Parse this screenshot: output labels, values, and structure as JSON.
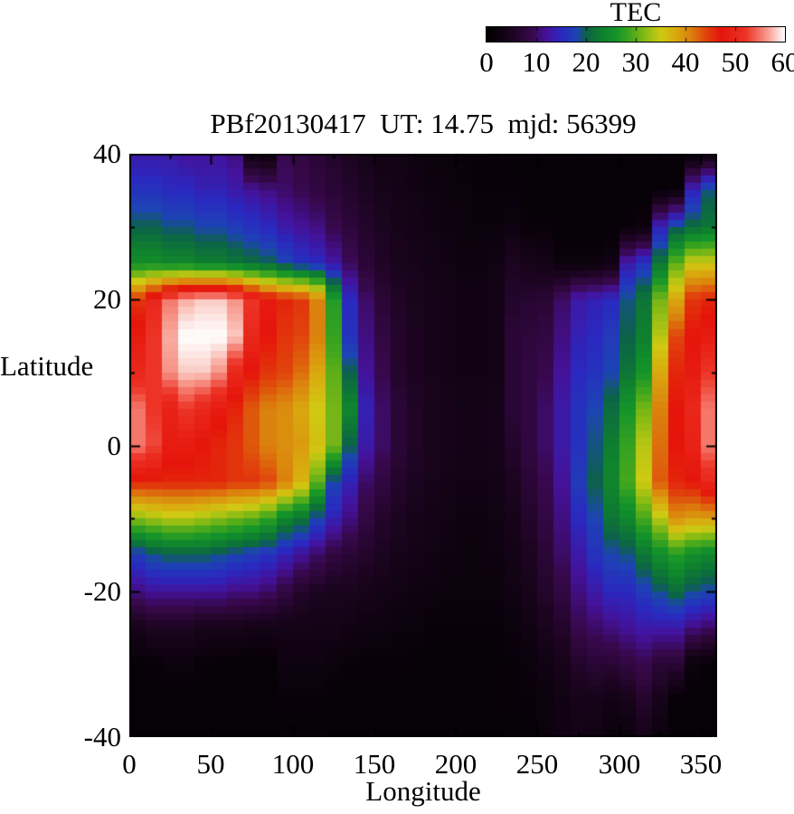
{
  "colorbar": {
    "title": "TEC",
    "tick_labels": [
      "0",
      "10",
      "20",
      "30",
      "40",
      "50",
      "60"
    ]
  },
  "plot": {
    "title": "PBf20130417  UT: 14.75  mjd: 56399",
    "x_label": "Longitude",
    "y_label": "Latitude",
    "x_tick_labels": [
      "0",
      "50",
      "100",
      "150",
      "200",
      "250",
      "300",
      "350"
    ],
    "y_tick_labels": [
      "40",
      "20",
      "0",
      "-20",
      "-40"
    ]
  },
  "chart_data": {
    "type": "heatmap",
    "title": "PBf20130417  UT: 14.75  mjd: 56399",
    "xlabel": "Longitude",
    "ylabel": "Latitude",
    "zlabel": "TEC",
    "xlim": [
      0,
      360
    ],
    "ylim": [
      -40,
      40
    ],
    "zlim": [
      0,
      60
    ],
    "grid": false,
    "legend_position": "top-right-colorbar",
    "x_major_ticks": [
      0,
      50,
      100,
      150,
      200,
      250,
      300,
      350
    ],
    "x_minor_ticks": [
      25,
      75,
      125,
      175,
      225,
      275,
      325
    ],
    "y_major_ticks": [
      40,
      20,
      0,
      -20,
      -40
    ],
    "y_minor_ticks": [
      30,
      10,
      -10,
      -30
    ],
    "colorbar_ticks": [
      0,
      10,
      20,
      30,
      40,
      50,
      60
    ],
    "lon_bins": [
      0,
      10,
      20,
      30,
      40,
      50,
      60,
      70,
      80,
      90,
      100,
      110,
      120,
      130,
      140,
      150,
      160,
      170,
      180,
      190,
      200,
      210,
      220,
      230,
      240,
      250,
      260,
      270,
      280,
      290,
      300,
      310,
      320,
      330,
      340,
      350
    ],
    "lat_samples": [
      40,
      35,
      30,
      25,
      20,
      15,
      10,
      5,
      0,
      -5,
      -10,
      -15,
      -20,
      -25,
      -30,
      -35,
      -40
    ],
    "values": [
      [
        13,
        13,
        13,
        12,
        12,
        12,
        11,
        3,
        2,
        9,
        8,
        7,
        6,
        5,
        4,
        3,
        3,
        2.5,
        2,
        2,
        1.5,
        1.5,
        1.5,
        1,
        1,
        1,
        1,
        1,
        1,
        1,
        1,
        1,
        1,
        1,
        1,
        2
      ],
      [
        16,
        16,
        15,
        15,
        14,
        14,
        13,
        12,
        11,
        10,
        9,
        8,
        7,
        6,
        5,
        4,
        3.5,
        3,
        2.5,
        2,
        2,
        1.5,
        1.5,
        1.5,
        1,
        1,
        1,
        1,
        1,
        1,
        1,
        1,
        1,
        1.5,
        14,
        19
      ],
      [
        20,
        20,
        19,
        19,
        18,
        18,
        17,
        16,
        15,
        13,
        12,
        11,
        9,
        7.5,
        6,
        5,
        4,
        3.5,
        3,
        2.5,
        2,
        2,
        2,
        2.5,
        1.5,
        1.5,
        1,
        1,
        1,
        1,
        1.5,
        2,
        14,
        19,
        21,
        22
      ],
      [
        25,
        25,
        24,
        24,
        23,
        23,
        22,
        21,
        20,
        18,
        16,
        15,
        12.5,
        9.5,
        7,
        5.5,
        4.5,
        4,
        3.5,
        3,
        2.5,
        2.5,
        3,
        5,
        4,
        3.5,
        2,
        2,
        2,
        3,
        13,
        16,
        22,
        30,
        35,
        35
      ],
      [
        45,
        50,
        55,
        57,
        58,
        58,
        56,
        52,
        48,
        46,
        45,
        41,
        27,
        15,
        10,
        7,
        5.5,
        4.5,
        4,
        3.5,
        3,
        3,
        3.5,
        6,
        6.5,
        7,
        10,
        13,
        14,
        15,
        19,
        22,
        31,
        38,
        45,
        46
      ],
      [
        48,
        52,
        57,
        60,
        60,
        60,
        58,
        50,
        47,
        45,
        44,
        41,
        28,
        16,
        11,
        8,
        6,
        5,
        4,
        3.5,
        3,
        3,
        3.5,
        7,
        7.5,
        8,
        11,
        14,
        15,
        17,
        20,
        23,
        34,
        44,
        47,
        48
      ],
      [
        50,
        52,
        56,
        58,
        58,
        56,
        50,
        47,
        45,
        44,
        42,
        38,
        30,
        20,
        12,
        9,
        6,
        5,
        4,
        3.5,
        3,
        3,
        3.5,
        7,
        8,
        9,
        12,
        15,
        16,
        18,
        22,
        26,
        38,
        46,
        48,
        52
      ],
      [
        55,
        52,
        49,
        52,
        50,
        48,
        46,
        43,
        41,
        40,
        38,
        35,
        31,
        24,
        14,
        10,
        7,
        5.5,
        4.5,
        4,
        3.5,
        3.5,
        4,
        7,
        8,
        10,
        13,
        16,
        18,
        21,
        26,
        31,
        41,
        47,
        50,
        55
      ],
      [
        55,
        53,
        48,
        48,
        47,
        46,
        45,
        43,
        41,
        40,
        39,
        36,
        31,
        20,
        13,
        10,
        7,
        5.5,
        4.5,
        4,
        3.5,
        3.5,
        4,
        6,
        8,
        10,
        13,
        16,
        19,
        23,
        28,
        34,
        42,
        47,
        49,
        55
      ],
      [
        46,
        46,
        46,
        46,
        46,
        46,
        45,
        45,
        44,
        41,
        37,
        30,
        18,
        14,
        10,
        8,
        6,
        5,
        4,
        3.5,
        3,
        3,
        3.5,
        5,
        7,
        9,
        12,
        17,
        20,
        24,
        29,
        35,
        43,
        46,
        47,
        50
      ],
      [
        32,
        33,
        34,
        34,
        33,
        32,
        31,
        30,
        28,
        24,
        22,
        18,
        14,
        11,
        8,
        6,
        5,
        4,
        3.5,
        3,
        2.5,
        2.5,
        3,
        4,
        6,
        8,
        11,
        15,
        18,
        22,
        24,
        29,
        34,
        40,
        39,
        39
      ],
      [
        17,
        19,
        20,
        20,
        20,
        19,
        18,
        17,
        16,
        14,
        12,
        10,
        8,
        7,
        6,
        5,
        4,
        3.5,
        3,
        2.5,
        2,
        2,
        2.5,
        3.5,
        5,
        7,
        10,
        13,
        16,
        18,
        19,
        22,
        25,
        27,
        25,
        24
      ],
      [
        11,
        12,
        12,
        12,
        12,
        12,
        11,
        11,
        10,
        8,
        6,
        5,
        4.5,
        4.5,
        4,
        3.5,
        3,
        2.5,
        2.5,
        2,
        2,
        2,
        2,
        3,
        4,
        6,
        8,
        11,
        13,
        15,
        15,
        17,
        19,
        21,
        19,
        18
      ],
      [
        4,
        5,
        5,
        5,
        4,
        4,
        4,
        3.5,
        3.5,
        3.5,
        3.5,
        3.5,
        3.5,
        3,
        2.5,
        2.5,
        2,
        2,
        1.5,
        1.5,
        1.5,
        1.5,
        1.5,
        2,
        3,
        4.5,
        6,
        9,
        10,
        11,
        12,
        13,
        13,
        13,
        11,
        10
      ],
      [
        1,
        1.5,
        2,
        2,
        1.5,
        1,
        1,
        1,
        1,
        2.5,
        2.5,
        2.5,
        2,
        1.5,
        1.5,
        1.5,
        1.5,
        1,
        1,
        1,
        1,
        1,
        1,
        1.5,
        2,
        3,
        4,
        6,
        7,
        7,
        8,
        9,
        7,
        7,
        2,
        1
      ],
      [
        1,
        1,
        1,
        1,
        1,
        1,
        1,
        1,
        1,
        1.5,
        1.5,
        1.5,
        1,
        1,
        1,
        1,
        1,
        1,
        1,
        1,
        1,
        1,
        1,
        1.5,
        1.5,
        2,
        3,
        4,
        4,
        3,
        4,
        6,
        4,
        1,
        1,
        1
      ],
      [
        1,
        1,
        1,
        1,
        1,
        1,
        1,
        1,
        1,
        1,
        1,
        1,
        1,
        1,
        1,
        1,
        1,
        1,
        1,
        1,
        1,
        1,
        1,
        1,
        1,
        2,
        3,
        3.5,
        3,
        2,
        2,
        4,
        2,
        1,
        1,
        1
      ]
    ],
    "palette_stops": [
      [
        0,
        "#000000"
      ],
      [
        5,
        "#1c0420"
      ],
      [
        9,
        "#38084c"
      ],
      [
        12,
        "#44129a"
      ],
      [
        15,
        "#2a28c0"
      ],
      [
        18,
        "#1c44b4"
      ],
      [
        20,
        "#0c6248"
      ],
      [
        23,
        "#0e7f2e"
      ],
      [
        26,
        "#14942a"
      ],
      [
        29,
        "#46a81c"
      ],
      [
        32,
        "#8cbc14"
      ],
      [
        35,
        "#cfca12"
      ],
      [
        38,
        "#d9a80f"
      ],
      [
        41,
        "#db810d"
      ],
      [
        44,
        "#e0440c"
      ],
      [
        47,
        "#e5150b"
      ],
      [
        52,
        "#ec3326"
      ],
      [
        55,
        "#f4776a"
      ],
      [
        57,
        "#f9aca1"
      ],
      [
        59,
        "#fde7e4"
      ],
      [
        60,
        "#ffffff"
      ]
    ]
  }
}
